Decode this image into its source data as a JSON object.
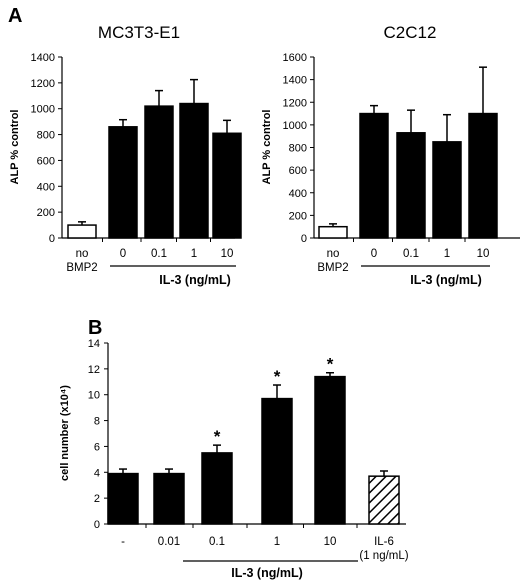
{
  "panels": {
    "a": "A",
    "b": "B"
  },
  "chart_data": [
    {
      "type": "bar",
      "title": "MC3T3-E1",
      "ylabel": "ALP % control",
      "xlabel": "IL-3 (ng/mL)",
      "ylim": [
        0,
        1400
      ],
      "yticks": [
        0,
        200,
        400,
        600,
        800,
        1000,
        1200,
        1400
      ],
      "categories": [
        "no BMP2",
        "0",
        "0.1",
        "1",
        "10"
      ],
      "values": [
        100,
        860,
        1020,
        1040,
        810
      ],
      "errors": [
        25,
        55,
        120,
        185,
        100
      ],
      "fill": [
        "white",
        "black",
        "black",
        "black",
        "black"
      ]
    },
    {
      "type": "bar",
      "title": "C2C12",
      "ylabel": "ALP % control",
      "xlabel": "IL-3 (ng/mL)",
      "ylim": [
        0,
        1600
      ],
      "yticks": [
        0,
        200,
        400,
        600,
        800,
        1000,
        1200,
        1400,
        1600
      ],
      "categories": [
        "no BMP2",
        "0",
        "0.1",
        "1",
        "10"
      ],
      "values": [
        100,
        1100,
        930,
        850,
        1100
      ],
      "errors": [
        25,
        70,
        200,
        240,
        410
      ],
      "fill": [
        "white",
        "black",
        "black",
        "black",
        "black"
      ]
    },
    {
      "type": "bar",
      "title": "",
      "ylabel": "cell number (x10⁴)",
      "xlabel": "IL-3 (ng/mL)",
      "ylim": [
        0,
        14
      ],
      "yticks": [
        0,
        2,
        4,
        6,
        8,
        10,
        12,
        14
      ],
      "categories": [
        "-",
        "0.01",
        "0.1",
        "1",
        "10",
        "IL-6 (1 ng/mL)"
      ],
      "values": [
        3.9,
        3.9,
        5.5,
        9.7,
        11.4,
        3.7
      ],
      "errors": [
        0.35,
        0.35,
        0.6,
        1.05,
        0.3,
        0.4
      ],
      "significant": [
        false,
        false,
        true,
        true,
        true,
        false
      ],
      "fill": [
        "black",
        "black",
        "black",
        "black",
        "black",
        "hatched"
      ]
    }
  ]
}
